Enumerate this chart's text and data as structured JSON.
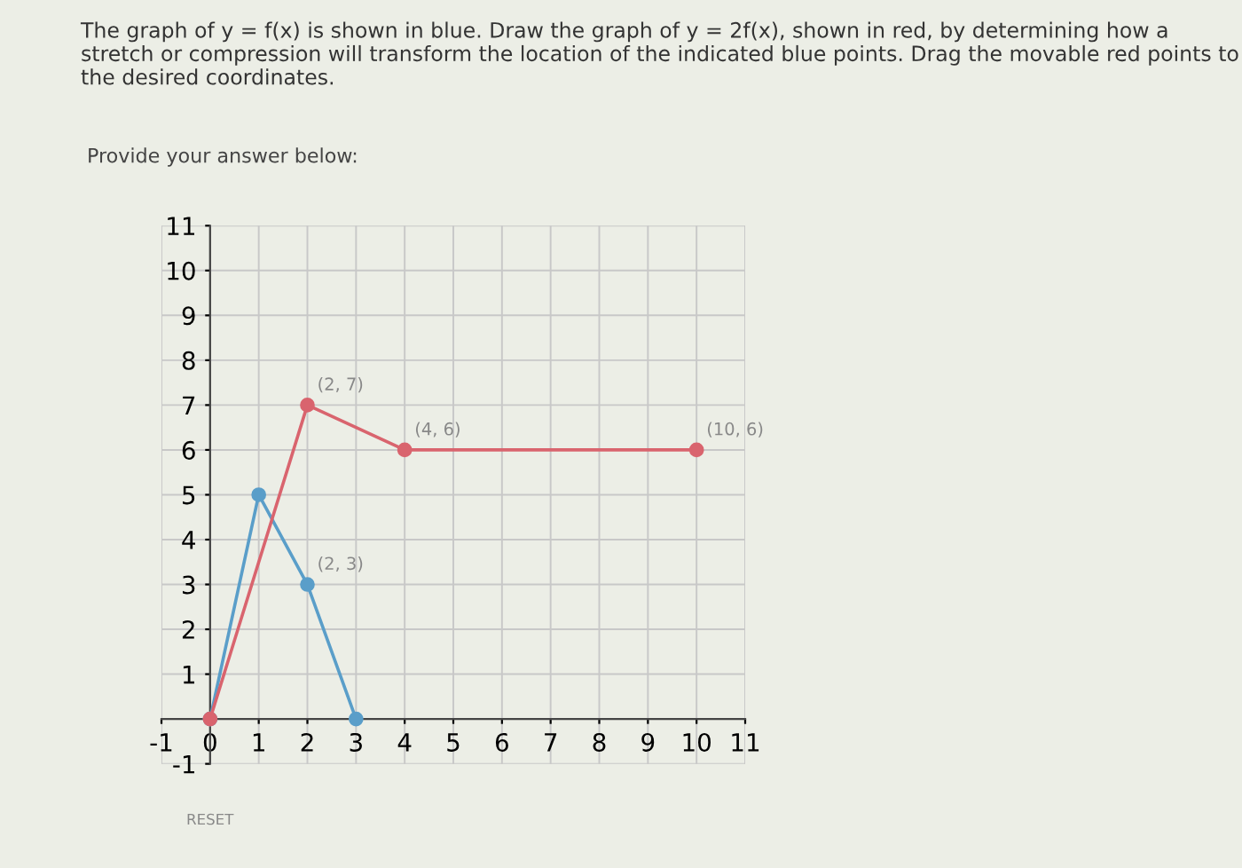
{
  "chart_data": {
    "type": "line",
    "title": "The graph of y = f(x) is shown in blue. Draw the graph of y = 2f(x), shown in red, by determining how a stretch or compression will transform the location of the indicated blue points. Drag the movable red points to the desired coordinates.",
    "subtitle": "Provide your answer below:",
    "series": [
      {
        "color": "#5a9ec9",
        "x": [
          0,
          1,
          2,
          3
        ],
        "values": [
          0,
          5,
          3,
          0
        ]
      },
      {
        "color": "#d9646e",
        "x": [
          0,
          2,
          4,
          10
        ],
        "values": [
          0,
          7,
          6,
          6
        ]
      }
    ],
    "xlim": [
      -1,
      11
    ],
    "ylim": [
      -1,
      11
    ],
    "xticks": [
      -1,
      0,
      1,
      2,
      3,
      4,
      5,
      6,
      7,
      8,
      9,
      10,
      11
    ],
    "yticks": [
      -1,
      1,
      2,
      3,
      4,
      5,
      6,
      7,
      8,
      9,
      10,
      11
    ],
    "grid": true,
    "marker": "circle",
    "line_style": "solid",
    "legend": false,
    "annotations": [
      {
        "text": "(2, 7)",
        "x": 2,
        "y": 7
      },
      {
        "text": "(4, 6)",
        "x": 4,
        "y": 6
      },
      {
        "text": "(10, 6)",
        "x": 10,
        "y": 6
      },
      {
        "text": "(2, 3)",
        "x": 2,
        "y": 3
      },
      "RESET"
    ]
  }
}
